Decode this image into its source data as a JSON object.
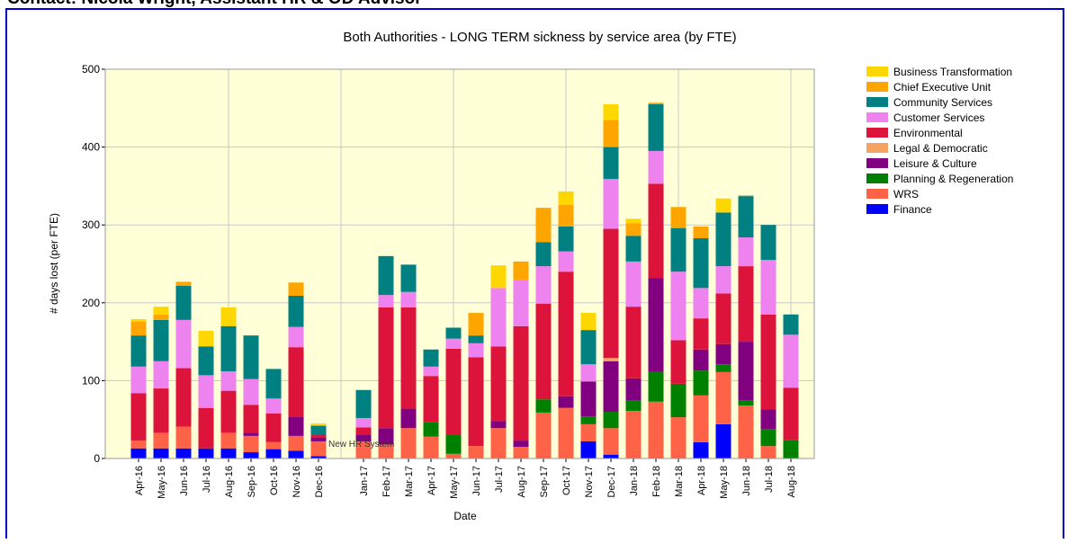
{
  "header": "Contact: Nicola Wright, Assistant HR & OD Advisor",
  "chart_data": {
    "type": "stacked_bar",
    "title": "Both Authorities - LONG TERM sickness by service area (by FTE)",
    "x_label": "Date",
    "y_label": "# days lost (per FTE)",
    "annotation": "New HR System",
    "categories": [
      "Apr-16",
      "May-16",
      "Jun-16",
      "Jul-16",
      "Aug-16",
      "Sep-16",
      "Oct-16",
      "Nov-16",
      "Dec-16",
      null,
      "Jan-17",
      "Feb-17",
      "Mar-17",
      "Apr-17",
      "May-17",
      "Jun-17",
      "Jul-17",
      "Aug-17",
      "Sep-17",
      "Oct-17",
      "Nov-17",
      "Dec-17",
      "Jan-18",
      "Feb-18",
      "Mar-18",
      "Apr-18",
      "May-18",
      "Jun-18",
      "Jul-18",
      "Aug-18"
    ],
    "ylim": [
      0,
      500
    ],
    "yticks": [
      0,
      100,
      200,
      300,
      400,
      500
    ],
    "grid": true,
    "legend": "right",
    "series": [
      {
        "name": "Finance",
        "color": "#0000FF",
        "values": [
          13,
          13,
          13,
          13,
          13,
          8,
          12,
          10,
          3,
          null,
          0,
          0,
          0,
          0,
          0,
          0,
          0,
          0,
          0,
          0,
          22,
          5,
          0,
          0,
          0,
          21,
          44,
          0,
          0,
          0
        ]
      },
      {
        "name": "WRS",
        "color": "#FF6347",
        "values": [
          10,
          20,
          28,
          0,
          20,
          21,
          9,
          19,
          19,
          null,
          22,
          18,
          39,
          28,
          6,
          16,
          39,
          15,
          59,
          65,
          22,
          34,
          61,
          73,
          53,
          60,
          67,
          68,
          16,
          0
        ]
      },
      {
        "name": "Planning & Regeneration",
        "color": "#008000",
        "values": [
          0,
          0,
          0,
          0,
          0,
          0,
          0,
          0,
          0,
          null,
          0,
          0,
          0,
          19,
          24,
          0,
          0,
          0,
          17,
          0,
          10,
          21,
          14,
          39,
          43,
          32,
          10,
          7,
          22,
          24
        ]
      },
      {
        "name": "Leisure & Culture",
        "color": "#800080",
        "values": [
          0,
          0,
          0,
          0,
          0,
          4,
          0,
          25,
          5,
          null,
          9,
          21,
          25,
          0,
          0,
          0,
          9,
          8,
          0,
          15,
          45,
          65,
          28,
          120,
          0,
          27,
          26,
          75,
          25,
          0
        ]
      },
      {
        "name": "Legal & Democratic",
        "color": "#F4A460",
        "values": [
          0,
          0,
          0,
          0,
          0,
          0,
          0,
          0,
          0,
          null,
          0,
          0,
          0,
          0,
          0,
          0,
          0,
          0,
          0,
          0,
          0,
          4,
          0,
          0,
          0,
          0,
          0,
          0,
          0,
          0
        ]
      },
      {
        "name": "Environmental",
        "color": "#DC143C",
        "values": [
          61,
          57,
          75,
          52,
          54,
          36,
          37,
          89,
          3,
          null,
          9,
          155,
          130,
          59,
          111,
          114,
          96,
          147,
          123,
          160,
          0,
          166,
          92,
          121,
          56,
          40,
          65,
          97,
          122,
          67
        ]
      },
      {
        "name": "Customer Services",
        "color": "#EE82EE",
        "values": [
          34,
          35,
          62,
          42,
          25,
          33,
          19,
          26,
          0,
          null,
          12,
          16,
          20,
          12,
          13,
          18,
          75,
          59,
          48,
          26,
          22,
          64,
          58,
          42,
          88,
          39,
          35,
          37,
          70,
          68
        ]
      },
      {
        "name": "Community Services",
        "color": "#008080",
        "values": [
          40,
          53,
          44,
          37,
          58,
          56,
          38,
          40,
          12,
          null,
          36,
          50,
          35,
          22,
          14,
          10,
          0,
          0,
          31,
          32,
          44,
          41,
          33,
          60,
          56,
          64,
          69,
          53,
          45,
          26
        ]
      },
      {
        "name": "Chief Executive Unit",
        "color": "#FFA500",
        "values": [
          18,
          7,
          5,
          0,
          0,
          0,
          0,
          17,
          1,
          null,
          0,
          0,
          0,
          0,
          0,
          29,
          0,
          24,
          44,
          28,
          0,
          35,
          16,
          2,
          27,
          15,
          0,
          1,
          0,
          0
        ]
      },
      {
        "name": "Business Transformation",
        "color": "#FFD700",
        "values": [
          3,
          10,
          0,
          20,
          24,
          0,
          0,
          0,
          2,
          null,
          0,
          0,
          0,
          0,
          0,
          0,
          29,
          0,
          0,
          17,
          22,
          20,
          6,
          0,
          0,
          0,
          18,
          0,
          0,
          0
        ]
      }
    ]
  }
}
